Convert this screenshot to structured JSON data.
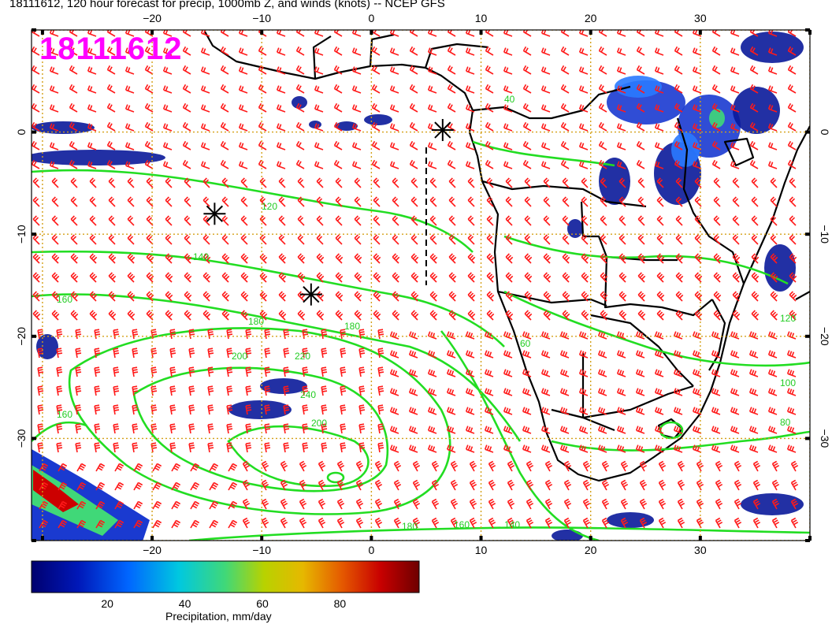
{
  "title": "18111612, 120 hour forecast for precip, 1000mb Z, and winds (knots) -- NCEP GFS",
  "stamp": "18111612",
  "map": {
    "lon_range": [
      -31,
      40
    ],
    "lat_range": [
      -40,
      10
    ],
    "x_ticks": [
      "-20",
      "-10",
      "0",
      "10",
      "20",
      "30"
    ],
    "y_ticks": [
      "0",
      "-10",
      "-20",
      "-30"
    ],
    "gridline_color": "#d4a017",
    "land_outline_color": "#000000",
    "contour_color": "#22dd22",
    "barb_color": "#ff0000",
    "contour_labels": [
      "160",
      "120",
      "140",
      "160",
      "180",
      "180",
      "200",
      "220",
      "240",
      "200",
      "180",
      "160",
      "140",
      "120",
      "100",
      "80",
      "60",
      "40"
    ],
    "high_pressure_markers": [
      {
        "lon": 6.5,
        "lat": 0.2
      },
      {
        "lon": -14.3,
        "lat": -8.0
      },
      {
        "lon": -5.5,
        "lat": -15.9
      }
    ]
  },
  "colorbar": {
    "title": "Precipitation, mm/day",
    "tick_labels": [
      "20",
      "40",
      "60",
      "80"
    ],
    "range": [
      0,
      100
    ],
    "colors": [
      "#00008b",
      "#0033cc",
      "#0077ff",
      "#00c8d8",
      "#44d47a",
      "#b6d000",
      "#e5b000",
      "#e06000",
      "#cc0000",
      "#7a0000"
    ]
  }
}
